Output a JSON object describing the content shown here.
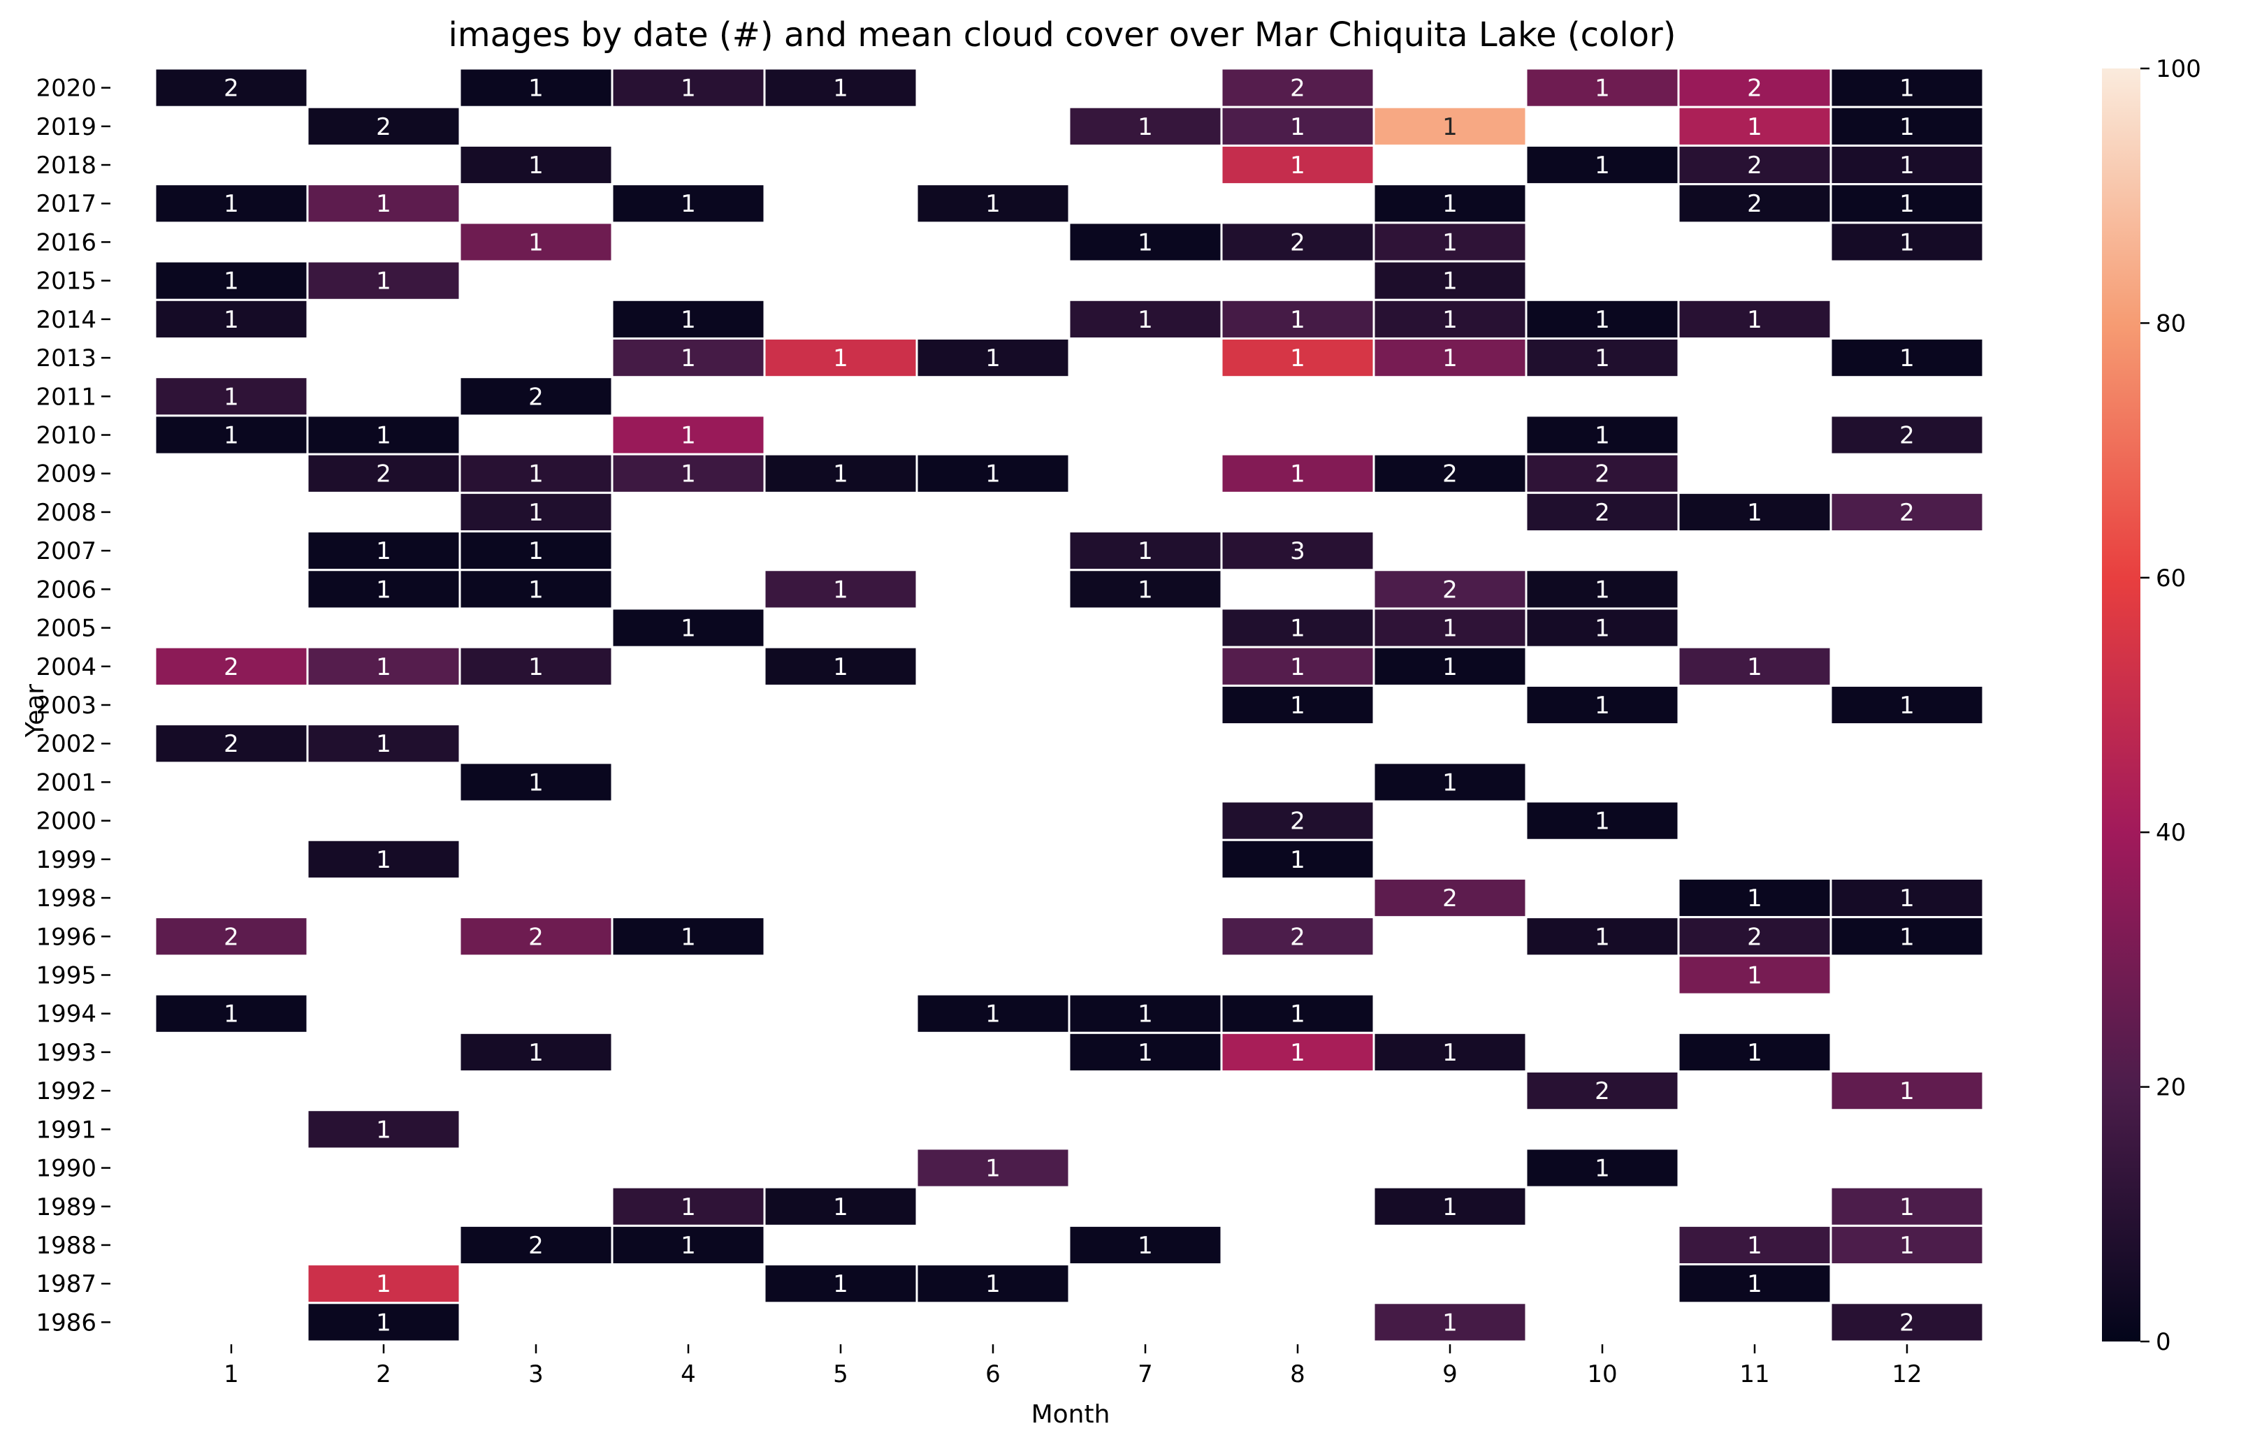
{
  "chart_data": {
    "type": "heatmap",
    "title": "images by date (#) and mean cloud cover over Mar Chiquita Lake (color)",
    "xlabel": "Month",
    "ylabel": "Year",
    "months": [
      "1",
      "2",
      "3",
      "4",
      "5",
      "6",
      "7",
      "8",
      "9",
      "10",
      "11",
      "12"
    ],
    "years": [
      "2020",
      "2019",
      "2018",
      "2017",
      "2016",
      "2015",
      "2014",
      "2013",
      "2011",
      "2010",
      "2009",
      "2008",
      "2007",
      "2006",
      "2005",
      "2004",
      "2003",
      "2002",
      "2001",
      "2000",
      "1999",
      "1998",
      "1996",
      "1995",
      "1994",
      "1993",
      "1992",
      "1991",
      "1990",
      "1989",
      "1988",
      "1987",
      "1986"
    ],
    "color_scale": {
      "min": 0,
      "max": 100,
      "ticks": [
        "0",
        "20",
        "40",
        "60",
        "80",
        "100"
      ],
      "stops": [
        "#03051a",
        "#4c1d4b",
        "#a11a5b",
        "#e83f3f",
        "#f69c73",
        "#faebdd"
      ]
    },
    "cells": [
      {
        "year": "2020",
        "month": 1,
        "count": 2,
        "cloud": 3
      },
      {
        "year": "2020",
        "month": 3,
        "count": 1,
        "cloud": 2
      },
      {
        "year": "2020",
        "month": 4,
        "count": 1,
        "cloud": 10
      },
      {
        "year": "2020",
        "month": 5,
        "count": 1,
        "cloud": 5
      },
      {
        "year": "2020",
        "month": 8,
        "count": 2,
        "cloud": 22
      },
      {
        "year": "2020",
        "month": 10,
        "count": 1,
        "cloud": 28
      },
      {
        "year": "2020",
        "month": 11,
        "count": 2,
        "cloud": 38
      },
      {
        "year": "2020",
        "month": 12,
        "count": 1,
        "cloud": 2
      },
      {
        "year": "2019",
        "month": 2,
        "count": 2,
        "cloud": 3
      },
      {
        "year": "2019",
        "month": 7,
        "count": 1,
        "cloud": 14
      },
      {
        "year": "2019",
        "month": 8,
        "count": 1,
        "cloud": 20
      },
      {
        "year": "2019",
        "month": 9,
        "count": 1,
        "cloud": 83
      },
      {
        "year": "2019",
        "month": 11,
        "count": 1,
        "cloud": 43
      },
      {
        "year": "2019",
        "month": 12,
        "count": 1,
        "cloud": 2
      },
      {
        "year": "2018",
        "month": 3,
        "count": 1,
        "cloud": 5
      },
      {
        "year": "2018",
        "month": 8,
        "count": 1,
        "cloud": 50
      },
      {
        "year": "2018",
        "month": 10,
        "count": 1,
        "cloud": 2
      },
      {
        "year": "2018",
        "month": 11,
        "count": 2,
        "cloud": 10
      },
      {
        "year": "2018",
        "month": 12,
        "count": 1,
        "cloud": 6
      },
      {
        "year": "2017",
        "month": 1,
        "count": 1,
        "cloud": 2
      },
      {
        "year": "2017",
        "month": 2,
        "count": 1,
        "cloud": 24
      },
      {
        "year": "2017",
        "month": 4,
        "count": 1,
        "cloud": 2
      },
      {
        "year": "2017",
        "month": 6,
        "count": 1,
        "cloud": 3
      },
      {
        "year": "2017",
        "month": 9,
        "count": 1,
        "cloud": 2
      },
      {
        "year": "2017",
        "month": 11,
        "count": 2,
        "cloud": 3
      },
      {
        "year": "2017",
        "month": 12,
        "count": 1,
        "cloud": 2
      },
      {
        "year": "2016",
        "month": 3,
        "count": 1,
        "cloud": 28
      },
      {
        "year": "2016",
        "month": 7,
        "count": 1,
        "cloud": 2
      },
      {
        "year": "2016",
        "month": 8,
        "count": 2,
        "cloud": 8
      },
      {
        "year": "2016",
        "month": 9,
        "count": 1,
        "cloud": 12
      },
      {
        "year": "2016",
        "month": 12,
        "count": 1,
        "cloud": 5
      },
      {
        "year": "2015",
        "month": 1,
        "count": 1,
        "cloud": 2
      },
      {
        "year": "2015",
        "month": 2,
        "count": 1,
        "cloud": 15
      },
      {
        "year": "2015",
        "month": 9,
        "count": 1,
        "cloud": 7
      },
      {
        "year": "2014",
        "month": 1,
        "count": 1,
        "cloud": 5
      },
      {
        "year": "2014",
        "month": 4,
        "count": 1,
        "cloud": 2
      },
      {
        "year": "2014",
        "month": 7,
        "count": 1,
        "cloud": 10
      },
      {
        "year": "2014",
        "month": 8,
        "count": 1,
        "cloud": 18
      },
      {
        "year": "2014",
        "month": 9,
        "count": 1,
        "cloud": 10
      },
      {
        "year": "2014",
        "month": 10,
        "count": 1,
        "cloud": 2
      },
      {
        "year": "2014",
        "month": 11,
        "count": 1,
        "cloud": 10
      },
      {
        "year": "2013",
        "month": 4,
        "count": 1,
        "cloud": 18
      },
      {
        "year": "2013",
        "month": 5,
        "count": 1,
        "cloud": 52
      },
      {
        "year": "2013",
        "month": 6,
        "count": 1,
        "cloud": 5
      },
      {
        "year": "2013",
        "month": 8,
        "count": 1,
        "cloud": 55
      },
      {
        "year": "2013",
        "month": 9,
        "count": 1,
        "cloud": 30
      },
      {
        "year": "2013",
        "month": 10,
        "count": 1,
        "cloud": 8
      },
      {
        "year": "2013",
        "month": 12,
        "count": 1,
        "cloud": 2
      },
      {
        "year": "2011",
        "month": 1,
        "count": 1,
        "cloud": 12
      },
      {
        "year": "2011",
        "month": 3,
        "count": 2,
        "cloud": 2
      },
      {
        "year": "2010",
        "month": 1,
        "count": 1,
        "cloud": 2
      },
      {
        "year": "2010",
        "month": 2,
        "count": 1,
        "cloud": 2
      },
      {
        "year": "2010",
        "month": 4,
        "count": 1,
        "cloud": 38
      },
      {
        "year": "2010",
        "month": 10,
        "count": 1,
        "cloud": 2
      },
      {
        "year": "2010",
        "month": 12,
        "count": 2,
        "cloud": 8
      },
      {
        "year": "2009",
        "month": 2,
        "count": 2,
        "cloud": 7
      },
      {
        "year": "2009",
        "month": 3,
        "count": 1,
        "cloud": 10
      },
      {
        "year": "2009",
        "month": 4,
        "count": 1,
        "cloud": 16
      },
      {
        "year": "2009",
        "month": 5,
        "count": 1,
        "cloud": 3
      },
      {
        "year": "2009",
        "month": 6,
        "count": 1,
        "cloud": 2
      },
      {
        "year": "2009",
        "month": 8,
        "count": 1,
        "cloud": 33
      },
      {
        "year": "2009",
        "month": 9,
        "count": 2,
        "cloud": 2
      },
      {
        "year": "2009",
        "month": 10,
        "count": 2,
        "cloud": 12
      },
      {
        "year": "2008",
        "month": 3,
        "count": 1,
        "cloud": 8
      },
      {
        "year": "2008",
        "month": 10,
        "count": 2,
        "cloud": 8
      },
      {
        "year": "2008",
        "month": 11,
        "count": 1,
        "cloud": 3
      },
      {
        "year": "2008",
        "month": 12,
        "count": 2,
        "cloud": 20
      },
      {
        "year": "2007",
        "month": 2,
        "count": 1,
        "cloud": 2
      },
      {
        "year": "2007",
        "month": 3,
        "count": 1,
        "cloud": 2
      },
      {
        "year": "2007",
        "month": 7,
        "count": 1,
        "cloud": 8
      },
      {
        "year": "2007",
        "month": 8,
        "count": 3,
        "cloud": 10
      },
      {
        "year": "2006",
        "month": 2,
        "count": 1,
        "cloud": 2
      },
      {
        "year": "2006",
        "month": 3,
        "count": 1,
        "cloud": 2
      },
      {
        "year": "2006",
        "month": 5,
        "count": 1,
        "cloud": 15
      },
      {
        "year": "2006",
        "month": 7,
        "count": 1,
        "cloud": 3
      },
      {
        "year": "2006",
        "month": 9,
        "count": 2,
        "cloud": 20
      },
      {
        "year": "2006",
        "month": 10,
        "count": 1,
        "cloud": 3
      },
      {
        "year": "2005",
        "month": 4,
        "count": 1,
        "cloud": 2
      },
      {
        "year": "2005",
        "month": 8,
        "count": 1,
        "cloud": 8
      },
      {
        "year": "2005",
        "month": 9,
        "count": 1,
        "cloud": 12
      },
      {
        "year": "2005",
        "month": 10,
        "count": 1,
        "cloud": 5
      },
      {
        "year": "2004",
        "month": 1,
        "count": 2,
        "cloud": 35
      },
      {
        "year": "2004",
        "month": 2,
        "count": 1,
        "cloud": 22
      },
      {
        "year": "2004",
        "month": 3,
        "count": 1,
        "cloud": 10
      },
      {
        "year": "2004",
        "month": 5,
        "count": 1,
        "cloud": 3
      },
      {
        "year": "2004",
        "month": 8,
        "count": 1,
        "cloud": 22
      },
      {
        "year": "2004",
        "month": 9,
        "count": 1,
        "cloud": 2
      },
      {
        "year": "2004",
        "month": 11,
        "count": 1,
        "cloud": 17
      },
      {
        "year": "2003",
        "month": 8,
        "count": 1,
        "cloud": 2
      },
      {
        "year": "2003",
        "month": 10,
        "count": 1,
        "cloud": 2
      },
      {
        "year": "2003",
        "month": 12,
        "count": 1,
        "cloud": 2
      },
      {
        "year": "2002",
        "month": 1,
        "count": 2,
        "cloud": 5
      },
      {
        "year": "2002",
        "month": 2,
        "count": 1,
        "cloud": 8
      },
      {
        "year": "2001",
        "month": 3,
        "count": 1,
        "cloud": 2
      },
      {
        "year": "2001",
        "month": 9,
        "count": 1,
        "cloud": 2
      },
      {
        "year": "2000",
        "month": 8,
        "count": 2,
        "cloud": 8
      },
      {
        "year": "2000",
        "month": 10,
        "count": 1,
        "cloud": 2
      },
      {
        "year": "1999",
        "month": 2,
        "count": 1,
        "cloud": 5
      },
      {
        "year": "1999",
        "month": 8,
        "count": 1,
        "cloud": 2
      },
      {
        "year": "1998",
        "month": 9,
        "count": 2,
        "cloud": 24
      },
      {
        "year": "1998",
        "month": 11,
        "count": 1,
        "cloud": 2
      },
      {
        "year": "1998",
        "month": 12,
        "count": 1,
        "cloud": 5
      },
      {
        "year": "1996",
        "month": 1,
        "count": 2,
        "cloud": 24
      },
      {
        "year": "1996",
        "month": 3,
        "count": 2,
        "cloud": 28
      },
      {
        "year": "1996",
        "month": 4,
        "count": 1,
        "cloud": 2
      },
      {
        "year": "1996",
        "month": 8,
        "count": 2,
        "cloud": 20
      },
      {
        "year": "1996",
        "month": 10,
        "count": 1,
        "cloud": 5
      },
      {
        "year": "1996",
        "month": 11,
        "count": 2,
        "cloud": 10
      },
      {
        "year": "1996",
        "month": 12,
        "count": 1,
        "cloud": 2
      },
      {
        "year": "1995",
        "month": 11,
        "count": 1,
        "cloud": 30
      },
      {
        "year": "1994",
        "month": 1,
        "count": 1,
        "cloud": 2
      },
      {
        "year": "1994",
        "month": 6,
        "count": 1,
        "cloud": 2
      },
      {
        "year": "1994",
        "month": 7,
        "count": 1,
        "cloud": 2
      },
      {
        "year": "1994",
        "month": 8,
        "count": 1,
        "cloud": 2
      },
      {
        "year": "1993",
        "month": 3,
        "count": 1,
        "cloud": 5
      },
      {
        "year": "1993",
        "month": 7,
        "count": 1,
        "cloud": 2
      },
      {
        "year": "1993",
        "month": 8,
        "count": 1,
        "cloud": 42
      },
      {
        "year": "1993",
        "month": 9,
        "count": 1,
        "cloud": 5
      },
      {
        "year": "1993",
        "month": 11,
        "count": 1,
        "cloud": 2
      },
      {
        "year": "1992",
        "month": 10,
        "count": 2,
        "cloud": 10
      },
      {
        "year": "1992",
        "month": 12,
        "count": 1,
        "cloud": 25
      },
      {
        "year": "1991",
        "month": 2,
        "count": 1,
        "cloud": 10
      },
      {
        "year": "1990",
        "month": 6,
        "count": 1,
        "cloud": 20
      },
      {
        "year": "1990",
        "month": 10,
        "count": 1,
        "cloud": 2
      },
      {
        "year": "1989",
        "month": 4,
        "count": 1,
        "cloud": 12
      },
      {
        "year": "1989",
        "month": 5,
        "count": 1,
        "cloud": 3
      },
      {
        "year": "1989",
        "month": 9,
        "count": 1,
        "cloud": 5
      },
      {
        "year": "1989",
        "month": 12,
        "count": 1,
        "cloud": 20
      },
      {
        "year": "1988",
        "month": 3,
        "count": 2,
        "cloud": 2
      },
      {
        "year": "1988",
        "month": 4,
        "count": 1,
        "cloud": 2
      },
      {
        "year": "1988",
        "month": 7,
        "count": 1,
        "cloud": 2
      },
      {
        "year": "1988",
        "month": 11,
        "count": 1,
        "cloud": 15
      },
      {
        "year": "1988",
        "month": 12,
        "count": 1,
        "cloud": 20
      },
      {
        "year": "1987",
        "month": 2,
        "count": 1,
        "cloud": 52
      },
      {
        "year": "1987",
        "month": 5,
        "count": 1,
        "cloud": 2
      },
      {
        "year": "1987",
        "month": 6,
        "count": 1,
        "cloud": 2
      },
      {
        "year": "1987",
        "month": 11,
        "count": 1,
        "cloud": 2
      },
      {
        "year": "1986",
        "month": 2,
        "count": 1,
        "cloud": 2
      },
      {
        "year": "1986",
        "month": 9,
        "count": 1,
        "cloud": 18
      },
      {
        "year": "1986",
        "month": 12,
        "count": 2,
        "cloud": 10
      }
    ]
  }
}
